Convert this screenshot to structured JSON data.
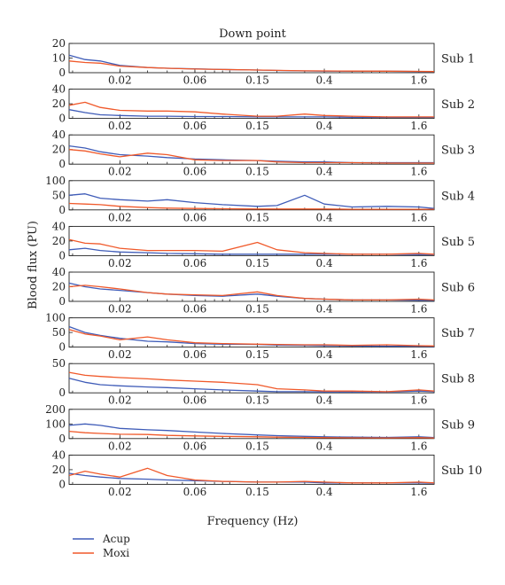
{
  "chart_data": {
    "type": "line",
    "title": "Down point",
    "xlabel": "Frequency (Hz)",
    "ylabel": "Blood flux (PU)",
    "x_scale": "log",
    "xlim": [
      0.0095,
      2.0
    ],
    "xticks": [
      0.02,
      0.06,
      0.15,
      0.4,
      1.6
    ],
    "xtick_labels": [
      "0.02",
      "0.06",
      "0.15",
      "0.4",
      "1.6"
    ],
    "colors": {
      "Acup": "#3f5cb8",
      "Moxi": "#f0592a"
    },
    "legend": {
      "placement": "bottom-left",
      "entries": [
        "Acup",
        "Moxi"
      ]
    },
    "frequencies": [
      0.0095,
      0.012,
      0.015,
      0.02,
      0.03,
      0.04,
      0.06,
      0.09,
      0.15,
      0.2,
      0.3,
      0.4,
      0.6,
      1.0,
      1.6,
      2.0
    ],
    "panels": [
      {
        "label": "Sub 1",
        "ylim": [
          0,
          20
        ],
        "yticks": [
          0,
          10,
          20
        ],
        "series": [
          {
            "name": "Acup",
            "values": [
              12,
              9,
              8,
              5,
              3.5,
              3,
              2.6,
              2.2,
              1.8,
              1.5,
              1.2,
              1.1,
              1,
              1,
              0.8,
              0.7
            ]
          },
          {
            "name": "Moxi",
            "values": [
              8,
              7,
              6.5,
              4.5,
              3.5,
              3,
              2.5,
              2.2,
              1.8,
              1.6,
              1.3,
              1.2,
              1.1,
              1,
              0.9,
              0.8
            ]
          }
        ]
      },
      {
        "label": "Sub 2",
        "ylim": [
          0,
          40
        ],
        "yticks": [
          0,
          20,
          40
        ],
        "series": [
          {
            "name": "Acup",
            "values": [
              12,
              8,
              5,
              4,
              3,
              3,
              2.5,
              2.5,
              2,
              2,
              2,
              2,
              1.5,
              1.5,
              1.5,
              1.5
            ]
          },
          {
            "name": "Moxi",
            "values": [
              18,
              22,
              15,
              11,
              10,
              10,
              9,
              6,
              3,
              3,
              6,
              4,
              3,
              2,
              2,
              2
            ]
          }
        ]
      },
      {
        "label": "Sub 3",
        "ylim": [
          0,
          40
        ],
        "yticks": [
          0,
          20,
          40
        ],
        "series": [
          {
            "name": "Acup",
            "values": [
              25,
              22,
              17,
              13,
              11,
              9,
              7,
              6,
              5,
              4,
              3,
              3,
              2,
              2,
              2,
              2
            ]
          },
          {
            "name": "Moxi",
            "values": [
              20,
              18,
              14,
              10,
              15,
              13,
              6,
              5,
              5,
              3,
              2,
              2,
              2,
              1.5,
              1.5,
              1.5
            ]
          }
        ]
      },
      {
        "label": "Sub 4",
        "ylim": [
          0,
          100
        ],
        "yticks": [
          0,
          50,
          100
        ],
        "series": [
          {
            "name": "Acup",
            "values": [
              50,
              55,
              40,
              35,
              30,
              35,
              25,
              18,
              12,
              15,
              50,
              20,
              10,
              12,
              10,
              5
            ]
          },
          {
            "name": "Moxi",
            "values": [
              22,
              20,
              18,
              12,
              8,
              6,
              5,
              4,
              3,
              3,
              3,
              3,
              2,
              2,
              2,
              2
            ]
          }
        ]
      },
      {
        "label": "Sub 5",
        "ylim": [
          0,
          40
        ],
        "yticks": [
          0,
          20,
          40
        ],
        "series": [
          {
            "name": "Acup",
            "values": [
              8,
              10,
              7,
              5,
              4,
              3,
              2.5,
              2,
              2,
              2,
              2,
              2,
              2,
              2,
              1.5,
              1.5
            ]
          },
          {
            "name": "Moxi",
            "values": [
              22,
              17,
              16,
              10,
              7,
              7,
              7,
              6,
              18,
              8,
              4,
              3,
              2,
              2,
              3,
              2
            ]
          }
        ]
      },
      {
        "label": "Sub 6",
        "ylim": [
          0,
          40
        ],
        "yticks": [
          0,
          20,
          40
        ],
        "series": [
          {
            "name": "Acup",
            "values": [
              25,
              20,
              17,
              15,
              12,
              10,
              8,
              7,
              10,
              7,
              4,
              3,
              2,
              2,
              1.5,
              1.5
            ]
          },
          {
            "name": "Moxi",
            "values": [
              20,
              22,
              20,
              17,
              12,
              10,
              9,
              8,
              13,
              8,
              4,
              3,
              2,
              2,
              3,
              2
            ]
          }
        ]
      },
      {
        "label": "Sub 7",
        "ylim": [
          0,
          100
        ],
        "yticks": [
          0,
          50,
          100
        ],
        "series": [
          {
            "name": "Acup",
            "values": [
              70,
              50,
              40,
              30,
              20,
              18,
              12,
              10,
              9,
              7,
              6,
              5,
              4,
              3,
              3,
              2
            ]
          },
          {
            "name": "Moxi",
            "values": [
              60,
              45,
              38,
              25,
              35,
              25,
              15,
              12,
              10,
              9,
              8,
              8,
              6,
              8,
              5,
              4
            ]
          }
        ]
      },
      {
        "label": "Sub 8",
        "ylim": [
          0,
          50
        ],
        "yticks": [
          0,
          50
        ],
        "series": [
          {
            "name": "Acup",
            "values": [
              25,
              18,
              14,
              12,
              10,
              9,
              7,
              5,
              3,
              2,
              2,
              1.5,
              1.5,
              1.5,
              3,
              2
            ]
          },
          {
            "name": "Moxi",
            "values": [
              35,
              30,
              28,
              26,
              24,
              22,
              20,
              18,
              14,
              7,
              5,
              3,
              3,
              2,
              5,
              3
            ]
          }
        ]
      },
      {
        "label": "Sub 9",
        "ylim": [
          0,
          200
        ],
        "yticks": [
          0,
          100,
          200
        ],
        "series": [
          {
            "name": "Acup",
            "values": [
              90,
              100,
              90,
              70,
              60,
              55,
              45,
              35,
              25,
              20,
              15,
              12,
              10,
              8,
              12,
              7
            ]
          },
          {
            "name": "Moxi",
            "values": [
              50,
              40,
              35,
              30,
              28,
              22,
              18,
              15,
              12,
              10,
              8,
              6,
              5,
              4,
              6,
              4
            ]
          }
        ]
      },
      {
        "label": "Sub 10",
        "ylim": [
          0,
          40
        ],
        "yticks": [
          0,
          20,
          40
        ],
        "series": [
          {
            "name": "Acup",
            "values": [
              15,
              12,
              10,
              8,
              7,
              6,
              5,
              4,
              3,
              3,
              3,
              2,
              2,
              2,
              2,
              1.5
            ]
          },
          {
            "name": "Moxi",
            "values": [
              12,
              18,
              14,
              10,
              22,
              12,
              6,
              4,
              3,
              3,
              4,
              3,
              2,
              2,
              3,
              2
            ]
          }
        ]
      }
    ]
  }
}
